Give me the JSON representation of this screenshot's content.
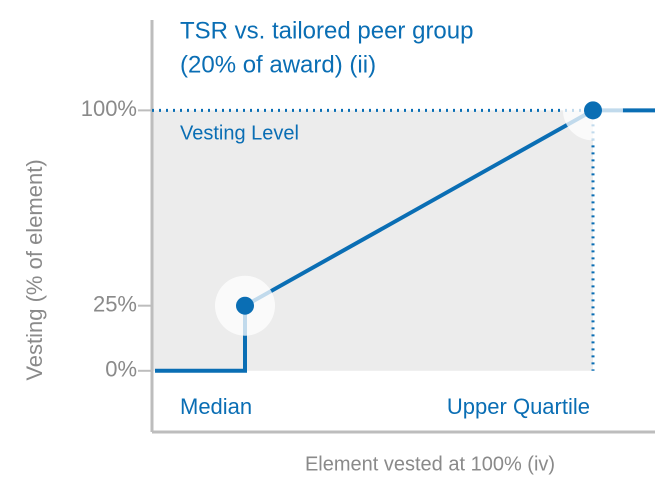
{
  "chart_data": {
    "type": "line",
    "title": "TSR vs. tailored peer group",
    "subtitle": "(20% of award) (ii)",
    "y_label": "Vesting (% of element)",
    "x_label": "Element vested at 100% (iv)",
    "annotation": "Vesting Level",
    "categories": [
      "Median",
      "Upper Quartile"
    ],
    "series": [
      {
        "name": "Vesting",
        "color": "#0a6eb4",
        "values": [
          25,
          100
        ]
      }
    ],
    "ylim": [
      -23.5,
      134.7
    ],
    "yticks": [
      {
        "value": 0,
        "label": "0%"
      },
      {
        "value": 25,
        "label": "25%"
      },
      {
        "value": 100,
        "label": "100%"
      }
    ]
  }
}
